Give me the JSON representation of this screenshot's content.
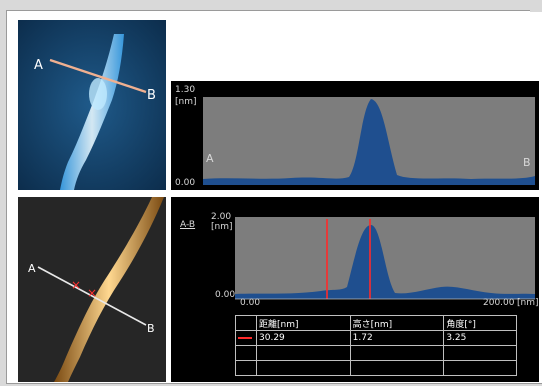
{
  "panel1": {
    "marker_a": "A",
    "marker_b": "B",
    "graph": {
      "y_max": "1.30",
      "y_unit": "[nm]",
      "y_min": "0.00",
      "label_a": "A",
      "label_b": "B"
    }
  },
  "panel2": {
    "marker_a": "A",
    "marker_b": "B",
    "graph": {
      "title": "A-B",
      "y_max": "2.00",
      "y_unit": "[nm]",
      "y_min": "0.00",
      "x_min": "0.00",
      "x_max": "200.00",
      "x_unit": "[nm]"
    },
    "table": {
      "headers": [
        "距離[nm]",
        "高さ[nm]",
        "角度[°]"
      ],
      "row1": [
        "30.29",
        "1.72",
        "3.25"
      ]
    }
  },
  "colors": {
    "profile_fill": "#1f4f8f",
    "profile_bg": "#7d7d7d",
    "cursor_red": "#ff2a2a",
    "line_peach": "#f0b090"
  }
}
